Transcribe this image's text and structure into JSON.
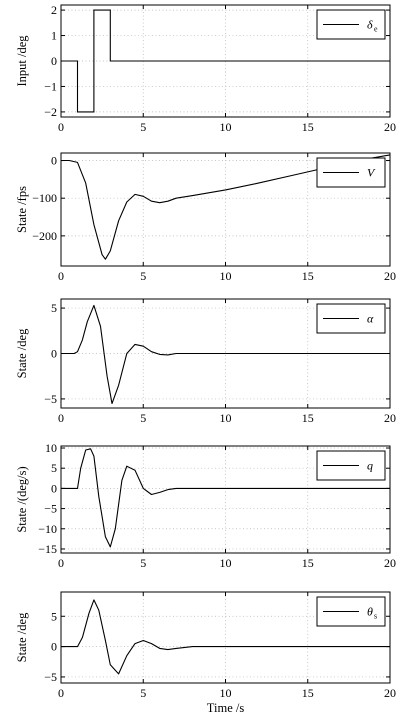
{
  "xlabel": "Time /s",
  "chart_data": [
    {
      "type": "line",
      "ylabel": "Input /deg",
      "legend": {
        "symbol": "δ",
        "sub": "e",
        "position": "top-right"
      },
      "xlim": [
        0,
        20
      ],
      "ylim": [
        -2.2,
        2.2
      ],
      "xticks": [
        0,
        5,
        10,
        15,
        20
      ],
      "yticks": [
        -2,
        -1,
        0,
        1,
        2
      ],
      "grid": true,
      "series": [
        {
          "x": [
            0,
            1,
            1,
            2,
            2,
            3,
            3,
            20
          ],
          "values": [
            0,
            0,
            -2,
            -2,
            2,
            2,
            0,
            0
          ]
        }
      ]
    },
    {
      "type": "line",
      "ylabel": "State /fps",
      "legend": {
        "symbol": "V",
        "sub": "",
        "position": "top-right"
      },
      "xlim": [
        0,
        20
      ],
      "ylim": [
        -280,
        20
      ],
      "xticks": [
        0,
        5,
        10,
        15,
        20
      ],
      "yticks": [
        -200,
        -100,
        0
      ],
      "grid": true,
      "series": [
        {
          "x": [
            0,
            0.5,
            1,
            1.5,
            2,
            2.5,
            2.7,
            3,
            3.5,
            4,
            4.5,
            5,
            5.5,
            6,
            6.5,
            7,
            8,
            10,
            12,
            14,
            16,
            18,
            20
          ],
          "values": [
            0,
            0,
            -5,
            -60,
            -170,
            -250,
            -262,
            -240,
            -160,
            -110,
            -90,
            -95,
            -108,
            -112,
            -108,
            -100,
            -93,
            -78,
            -60,
            -40,
            -20,
            0,
            15
          ]
        }
      ]
    },
    {
      "type": "line",
      "ylabel": "State /deg",
      "legend": {
        "symbol": "α",
        "sub": "",
        "position": "top-right"
      },
      "xlim": [
        0,
        20
      ],
      "ylim": [
        -6,
        6
      ],
      "xticks": [
        0,
        5,
        10,
        15,
        20
      ],
      "yticks": [
        -5,
        0,
        5
      ],
      "grid": true,
      "series": [
        {
          "x": [
            0,
            0.8,
            1,
            1.3,
            1.6,
            2,
            2.4,
            2.8,
            3.1,
            3.5,
            4,
            4.5,
            5,
            5.5,
            6,
            6.5,
            7,
            8,
            9,
            10,
            20
          ],
          "values": [
            0,
            0,
            0.2,
            1.5,
            3.5,
            5.3,
            3.0,
            -2.5,
            -5.5,
            -3.5,
            0.0,
            1.0,
            0.8,
            0.2,
            -0.1,
            -0.15,
            0,
            0,
            0,
            0,
            0
          ]
        }
      ]
    },
    {
      "type": "line",
      "ylabel": "State /(deg/s)",
      "legend": {
        "symbol": "q",
        "sub": "",
        "position": "top-right"
      },
      "xlim": [
        0,
        20
      ],
      "ylim": [
        -16,
        10.5
      ],
      "xticks": [
        0,
        5,
        10,
        15,
        20
      ],
      "yticks": [
        -15,
        -10,
        -5,
        0,
        5,
        10
      ],
      "grid": true,
      "series": [
        {
          "x": [
            0,
            1,
            1.2,
            1.5,
            1.8,
            2,
            2.3,
            2.7,
            3,
            3.3,
            3.7,
            4,
            4.5,
            5,
            5.5,
            6,
            6.5,
            7,
            8,
            10,
            20
          ],
          "values": [
            0,
            0,
            5,
            9.5,
            9.8,
            8,
            -2,
            -12,
            -14.5,
            -10,
            2,
            5.5,
            4.5,
            0,
            -1.5,
            -1,
            -0.3,
            0,
            0,
            0,
            0
          ]
        }
      ]
    },
    {
      "type": "line",
      "ylabel": "State /deg",
      "legend": {
        "symbol": "θ",
        "sub": "s",
        "position": "top-right"
      },
      "xlim": [
        0,
        20
      ],
      "ylim": [
        -6,
        9
      ],
      "xticks": [
        0,
        5,
        10,
        15,
        20
      ],
      "yticks": [
        -5,
        0,
        5
      ],
      "grid": true,
      "series": [
        {
          "x": [
            0,
            1,
            1.3,
            1.7,
            2,
            2.3,
            2.7,
            3,
            3.5,
            4,
            4.5,
            5,
            5.5,
            6,
            6.5,
            7,
            8,
            10,
            20
          ],
          "values": [
            0,
            0,
            1.5,
            5.5,
            7.7,
            6,
            1,
            -3,
            -4.5,
            -1.5,
            0.5,
            1,
            0.5,
            -0.3,
            -0.5,
            -0.3,
            0,
            0,
            0
          ]
        }
      ]
    }
  ]
}
